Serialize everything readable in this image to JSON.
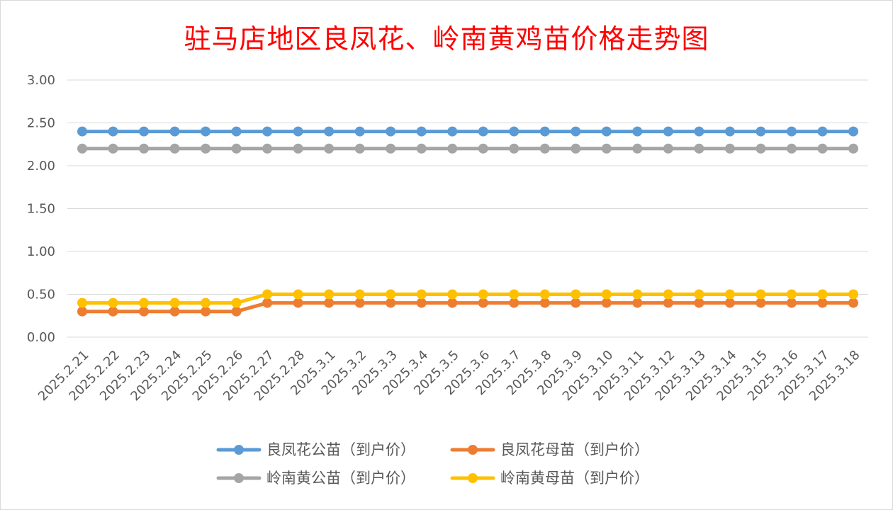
{
  "chart_data": {
    "type": "line",
    "title": "驻马店地区良凤花、岭南黄鸡苗价格走势图",
    "xlabel": "",
    "ylabel": "",
    "ylim": [
      0,
      3
    ],
    "yticks": [
      "0.00",
      "0.50",
      "1.00",
      "1.50",
      "2.00",
      "2.50",
      "3.00"
    ],
    "grid": true,
    "legend_position": "bottom",
    "categories": [
      "2025.2.21",
      "2025.2.22",
      "2025.2.23",
      "2025.2.24",
      "2025.2.25",
      "2025.2.26",
      "2025.2.27",
      "2025.2.28",
      "2025.3.1",
      "2025.3.2",
      "2025.3.3",
      "2025.3.4",
      "2025.3.5",
      "2025.3.6",
      "2025.3.7",
      "2025.3.8",
      "2025.3.9",
      "2025.3.10",
      "2025.3.11",
      "2025.3.12",
      "2025.3.13",
      "2025.3.14",
      "2025.3.15",
      "2025.3.16",
      "2025.3.17",
      "2025.3.18"
    ],
    "series": [
      {
        "name": "良凤花公苗（到户价）",
        "color": "#5b9bd5",
        "values": [
          2.4,
          2.4,
          2.4,
          2.4,
          2.4,
          2.4,
          2.4,
          2.4,
          2.4,
          2.4,
          2.4,
          2.4,
          2.4,
          2.4,
          2.4,
          2.4,
          2.4,
          2.4,
          2.4,
          2.4,
          2.4,
          2.4,
          2.4,
          2.4,
          2.4,
          2.4
        ]
      },
      {
        "name": "良凤花母苗（到户价）",
        "color": "#ed7d31",
        "values": [
          0.3,
          0.3,
          0.3,
          0.3,
          0.3,
          0.3,
          0.4,
          0.4,
          0.4,
          0.4,
          0.4,
          0.4,
          0.4,
          0.4,
          0.4,
          0.4,
          0.4,
          0.4,
          0.4,
          0.4,
          0.4,
          0.4,
          0.4,
          0.4,
          0.4,
          0.4
        ]
      },
      {
        "name": "岭南黄公苗（到户价）",
        "color": "#a5a5a5",
        "values": [
          2.2,
          2.2,
          2.2,
          2.2,
          2.2,
          2.2,
          2.2,
          2.2,
          2.2,
          2.2,
          2.2,
          2.2,
          2.2,
          2.2,
          2.2,
          2.2,
          2.2,
          2.2,
          2.2,
          2.2,
          2.2,
          2.2,
          2.2,
          2.2,
          2.2,
          2.2
        ]
      },
      {
        "name": "岭南黄母苗（到户价）",
        "color": "#ffc000",
        "values": [
          0.4,
          0.4,
          0.4,
          0.4,
          0.4,
          0.4,
          0.5,
          0.5,
          0.5,
          0.5,
          0.5,
          0.5,
          0.5,
          0.5,
          0.5,
          0.5,
          0.5,
          0.5,
          0.5,
          0.5,
          0.5,
          0.5,
          0.5,
          0.5,
          0.5,
          0.5
        ]
      }
    ]
  }
}
